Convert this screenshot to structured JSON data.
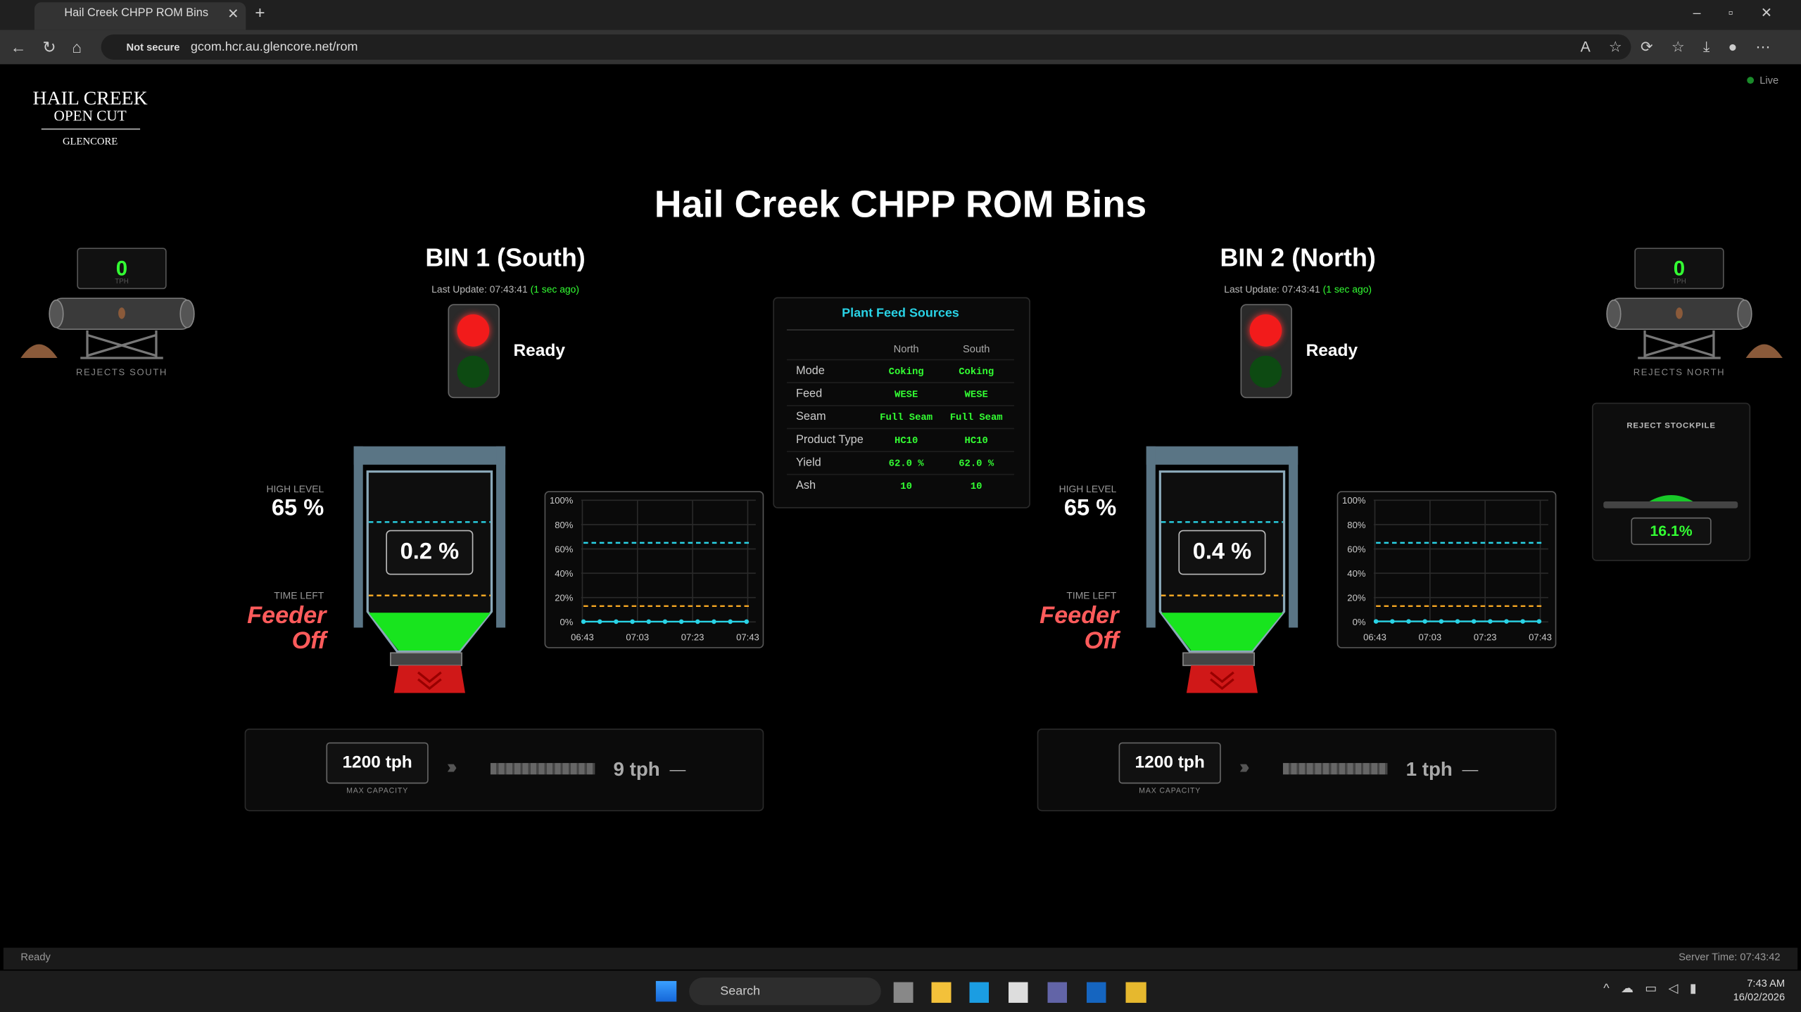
{
  "browser": {
    "tab_title": "Hail Creek CHPP ROM Bins",
    "security": "Not secure",
    "url": "gcom.hcr.au.glencore.net/rom"
  },
  "header": {
    "logo_line1": "HAIL CREEK",
    "logo_line2": "OPEN CUT",
    "logo_line3": "GLENCORE",
    "title": "Hail Creek CHPP ROM Bins",
    "live": "Live"
  },
  "rejects": [
    {
      "value": "0",
      "unit": "TPH",
      "label": "REJECTS SOUTH"
    },
    {
      "value": "0",
      "unit": "TPH",
      "label": "REJECTS NORTH"
    }
  ],
  "reject_stockpile": {
    "title": "REJECT STOCKPILE",
    "value": "16.1%"
  },
  "bins": [
    {
      "name": "BIN 1 (South)",
      "last_update": "Last Update: 07:43:41",
      "ago": "(1 sec ago)",
      "status": "Ready",
      "high_level_label": "HIGH LEVEL",
      "high_level": "65 %",
      "level": "0.2 %",
      "time_left_label": "TIME LEFT",
      "time_left_1": "Feeder",
      "time_left_2": "Off",
      "max_capacity": "1200 tph",
      "max_capacity_label": "MAX CAPACITY",
      "rate": "9 tph",
      "trend_symbol": "—",
      "trend": {
        "xticks": [
          "06:43",
          "07:03",
          "07:23",
          "07:43"
        ],
        "ylim": [
          0,
          100
        ],
        "yticks": [
          {
            "value": 0,
            "label": "0%"
          },
          {
            "value": 20,
            "label": "20%"
          },
          {
            "value": 40,
            "label": "40%"
          },
          {
            "value": 60,
            "label": "60%"
          },
          {
            "value": 80,
            "label": "80%"
          },
          {
            "value": 100,
            "label": "100%"
          }
        ],
        "values": [
          0.2,
          0.2,
          0.2,
          0.2,
          0.2,
          0.2,
          0.2,
          0.2,
          0.2,
          0.2,
          0.2
        ],
        "high_level": 65,
        "low_level": 13
      }
    },
    {
      "name": "BIN 2 (North)",
      "last_update": "Last Update: 07:43:41",
      "ago": "(1 sec ago)",
      "status": "Ready",
      "high_level_label": "HIGH LEVEL",
      "high_level": "65 %",
      "level": "0.4 %",
      "time_left_label": "TIME LEFT",
      "time_left_1": "Feeder",
      "time_left_2": "Off",
      "max_capacity": "1200 tph",
      "max_capacity_label": "MAX CAPACITY",
      "rate": "1 tph",
      "trend_symbol": "—",
      "trend": {
        "xticks": [
          "06:43",
          "07:03",
          "07:23",
          "07:43"
        ],
        "ylim": [
          0,
          100
        ],
        "yticks": [
          {
            "value": 0,
            "label": "0%"
          },
          {
            "value": 20,
            "label": "20%"
          },
          {
            "value": 40,
            "label": "40%"
          },
          {
            "value": 60,
            "label": "60%"
          },
          {
            "value": 80,
            "label": "80%"
          },
          {
            "value": 100,
            "label": "100%"
          }
        ],
        "values": [
          0.4,
          0.4,
          0.4,
          0.4,
          0.4,
          0.4,
          0.4,
          0.4,
          0.4,
          0.4,
          0.4
        ],
        "high_level": 65,
        "low_level": 13
      }
    }
  ],
  "feed_sources": {
    "title": "Plant Feed Sources",
    "columns": [
      "North",
      "South"
    ],
    "rows": [
      {
        "label": "Mode",
        "values": [
          "Coking",
          "Coking"
        ]
      },
      {
        "label": "Feed",
        "values": [
          "WESE",
          "WESE"
        ]
      },
      {
        "label": "Seam",
        "values": [
          "Full Seam",
          "Full Seam"
        ]
      },
      {
        "label": "Product Type",
        "values": [
          "HC10",
          "HC10"
        ]
      },
      {
        "label": "Yield",
        "values": [
          "62.0 %",
          "62.0 %"
        ]
      },
      {
        "label": "Ash",
        "values": [
          "10",
          "10"
        ]
      }
    ]
  },
  "status_bar": {
    "left": "Ready",
    "right": "Server Time: 07:43:42"
  },
  "taskbar": {
    "search": "Search",
    "time": "7:43 AM",
    "date": "16/02/2026"
  }
}
